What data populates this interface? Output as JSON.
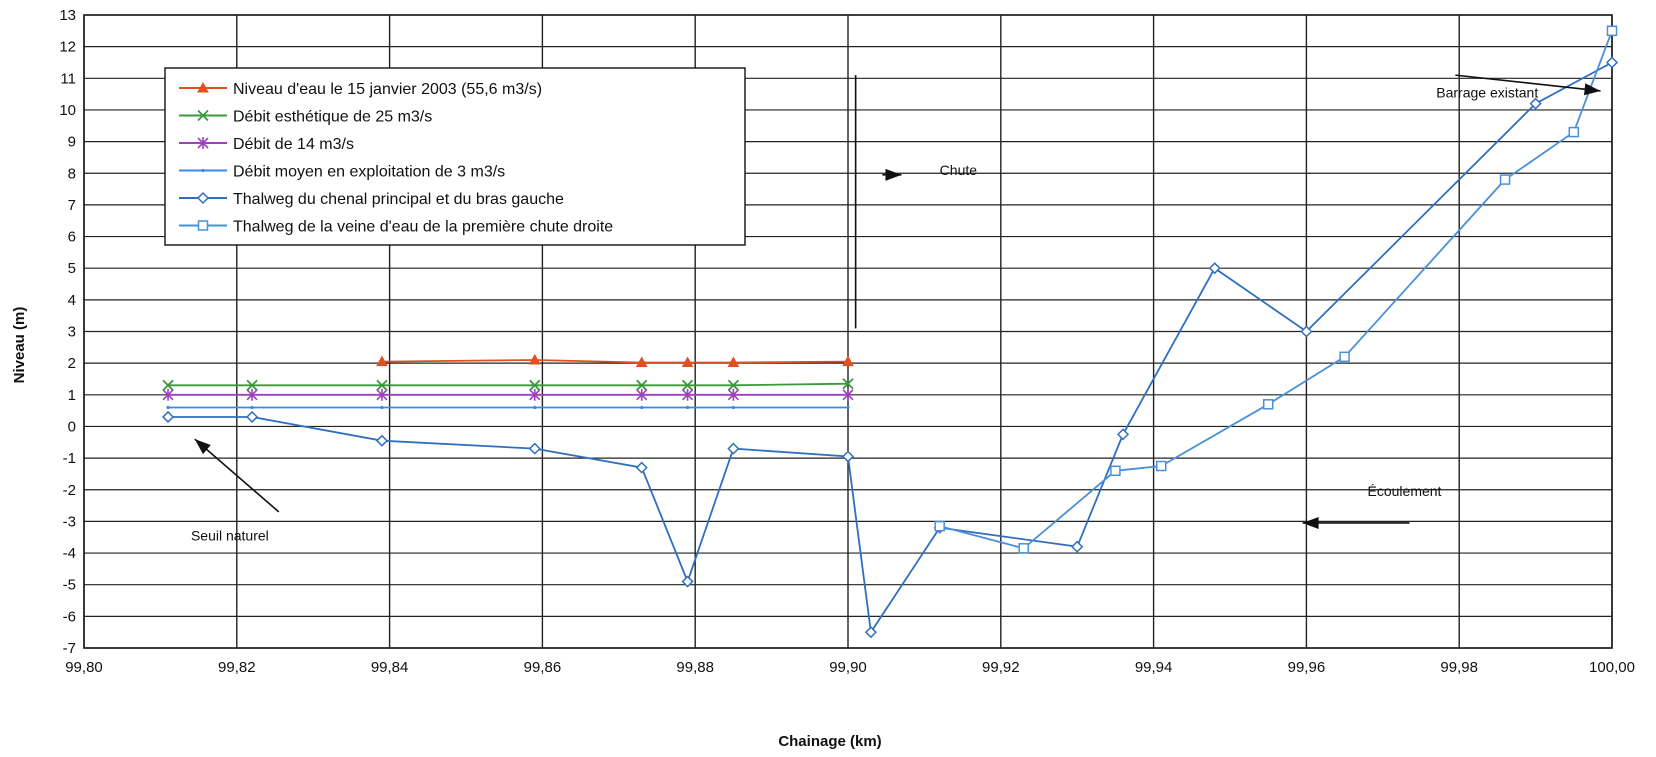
{
  "chart_data": {
    "type": "line",
    "title": "",
    "xlabel": "Chainage (km)",
    "ylabel": "Niveau (m)",
    "xlim": [
      99.8,
      100.0
    ],
    "ylim": [
      -7,
      13
    ],
    "grid": true,
    "legend_position": "top-left",
    "x_ticks": [
      "99,80",
      "99,82",
      "99,84",
      "99,86",
      "99,88",
      "99,90",
      "99,92",
      "99,94",
      "99,96",
      "99,98",
      "100,00"
    ],
    "y_ticks": [
      "-7",
      "-6",
      "-5",
      "-4",
      "-3",
      "-2",
      "-1",
      "0",
      "1",
      "2",
      "3",
      "4",
      "5",
      "6",
      "7",
      "8",
      "9",
      "10",
      "11",
      "12",
      "13"
    ],
    "series": [
      {
        "name": "Niveau d'eau le 15 janvier 2003 (55,6 m3/s)",
        "color": "#e05020",
        "marker": "triangle",
        "points": [
          [
            99.839,
            2.05
          ],
          [
            99.859,
            2.1
          ],
          [
            99.873,
            2.02
          ],
          [
            99.879,
            2.02
          ],
          [
            99.885,
            2.02
          ],
          [
            99.9,
            2.05
          ]
        ]
      },
      {
        "name": "Débit esthétique de 25 m3/s",
        "color": "#3a9a3a",
        "marker": "x",
        "points": [
          [
            99.811,
            1.3
          ],
          [
            99.822,
            1.3
          ],
          [
            99.839,
            1.3
          ],
          [
            99.859,
            1.3
          ],
          [
            99.873,
            1.3
          ],
          [
            99.879,
            1.3
          ],
          [
            99.885,
            1.3
          ],
          [
            99.9,
            1.35
          ]
        ]
      },
      {
        "name": "Débit de 14 m3/s",
        "color": "#a040c0",
        "marker": "star",
        "points": [
          [
            99.811,
            1.0
          ],
          [
            99.822,
            1.0
          ],
          [
            99.839,
            1.0
          ],
          [
            99.859,
            1.0
          ],
          [
            99.873,
            1.0
          ],
          [
            99.879,
            1.0
          ],
          [
            99.885,
            1.0
          ],
          [
            99.9,
            1.0
          ]
        ]
      },
      {
        "name": "Débit moyen en exploitation de 3 m3/s",
        "color": "#3a8ae0",
        "marker": "dot",
        "points": [
          [
            99.811,
            0.6
          ],
          [
            99.822,
            0.6
          ],
          [
            99.839,
            0.6
          ],
          [
            99.859,
            0.6
          ],
          [
            99.873,
            0.6
          ],
          [
            99.879,
            0.6
          ],
          [
            99.885,
            0.6
          ],
          [
            99.9,
            0.6
          ]
        ]
      },
      {
        "name": "Thalweg du chenal principal et du bras gauche",
        "color": "#2f6fc0",
        "marker": "diamond",
        "points": [
          [
            99.811,
            0.3
          ],
          [
            99.822,
            0.3
          ],
          [
            99.839,
            -0.45
          ],
          [
            99.859,
            -0.7
          ],
          [
            99.873,
            -1.3
          ],
          [
            99.879,
            -4.9
          ],
          [
            99.885,
            -0.7
          ],
          [
            99.9,
            -0.95
          ],
          [
            99.903,
            -6.5
          ],
          [
            99.912,
            -3.2
          ],
          [
            99.93,
            -3.8
          ],
          [
            99.936,
            -0.25
          ],
          [
            99.948,
            5.0
          ],
          [
            99.96,
            3.0
          ],
          [
            99.99,
            10.2
          ],
          [
            100.0,
            11.5
          ]
        ]
      },
      {
        "name": "Thalweg de la veine d'eau de la première chute droite",
        "color": "#4a90d9",
        "marker": "square",
        "points": [
          [
            99.912,
            -3.15
          ],
          [
            99.923,
            -3.85
          ],
          [
            99.935,
            -1.4
          ],
          [
            99.941,
            -1.25
          ],
          [
            99.955,
            0.7
          ],
          [
            99.965,
            2.2
          ],
          [
            99.986,
            7.8
          ],
          [
            99.995,
            9.3
          ],
          [
            100.0,
            12.5
          ]
        ]
      }
    ],
    "annotations": [
      {
        "text": "Barrage existant",
        "x": 99.977,
        "y": 10.4
      },
      {
        "text": "Chute",
        "x": 99.912,
        "y": 7.95
      },
      {
        "text": "Écoulement",
        "x": 99.968,
        "y": -2.2
      },
      {
        "text": "Seuil naturel",
        "x": 99.814,
        "y": -3.6
      }
    ]
  }
}
